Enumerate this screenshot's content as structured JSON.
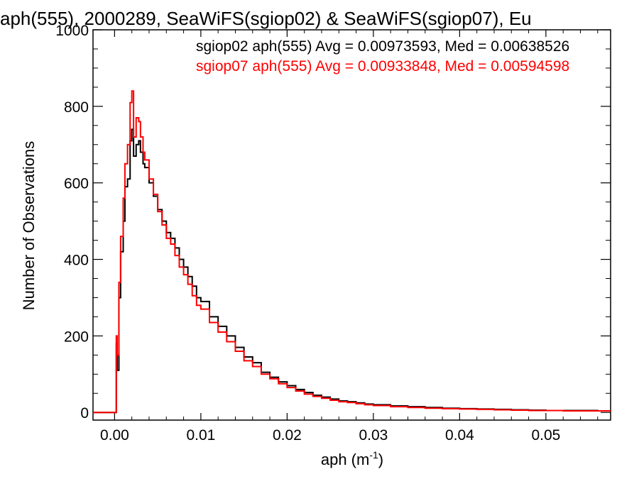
{
  "chart_data": {
    "type": "line",
    "title": "aph(555), 2000289, SeaWiFS(sgiop02) & SeaWiFS(sgiop07), Eu",
    "xlabel": "aph (m",
    "xlabel_sup": "-1",
    "xlabel_close": ")",
    "ylabel": "Number of Observations",
    "xlim": [
      -0.0025,
      0.0575
    ],
    "ylim": [
      -20,
      1000
    ],
    "x_ticks": [
      0.0,
      0.01,
      0.02,
      0.03,
      0.04,
      0.05
    ],
    "x_tick_labels": [
      "0.00",
      "0.01",
      "0.02",
      "0.03",
      "0.04",
      "0.05"
    ],
    "y_ticks": [
      0,
      200,
      400,
      600,
      800,
      1000
    ],
    "y_tick_labels": [
      "0",
      "200",
      "400",
      "600",
      "800",
      "1000"
    ],
    "grid": false,
    "legend": [
      {
        "text": "sgiop02 aph(555) Avg = 0.00973593, Med = 0.00638526",
        "color": "#000000"
      },
      {
        "text": "sgiop07 aph(555) Avg = 0.00933848, Med = 0.00594598",
        "color": "#ff0000"
      }
    ],
    "series": [
      {
        "color": "#000000",
        "x": [
          -0.0025,
          0.0,
          0.0002,
          0.0003,
          0.0005,
          0.0007,
          0.001,
          0.0012,
          0.0015,
          0.0018,
          0.002,
          0.0022,
          0.0025,
          0.0028,
          0.003,
          0.0033,
          0.0035,
          0.004,
          0.0045,
          0.005,
          0.0055,
          0.006,
          0.0065,
          0.007,
          0.0075,
          0.008,
          0.0085,
          0.009,
          0.0095,
          0.01,
          0.011,
          0.012,
          0.013,
          0.014,
          0.015,
          0.016,
          0.017,
          0.018,
          0.019,
          0.02,
          0.021,
          0.022,
          0.023,
          0.024,
          0.025,
          0.026,
          0.027,
          0.028,
          0.029,
          0.03,
          0.032,
          0.034,
          0.036,
          0.038,
          0.04,
          0.042,
          0.044,
          0.046,
          0.048,
          0.05,
          0.052,
          0.054,
          0.056,
          0.0575
        ],
        "y": [
          0,
          0,
          180,
          110,
          300,
          420,
          500,
          590,
          610,
          710,
          740,
          670,
          700,
          710,
          680,
          650,
          640,
          600,
          565,
          530,
          500,
          470,
          455,
          430,
          400,
          380,
          355,
          330,
          300,
          290,
          250,
          225,
          200,
          170,
          145,
          130,
          105,
          92,
          80,
          70,
          60,
          52,
          45,
          40,
          35,
          30,
          28,
          25,
          22,
          20,
          17,
          15,
          13,
          11,
          10,
          9,
          8,
          7,
          6,
          5,
          5,
          5,
          4,
          4
        ]
      },
      {
        "color": "#ff0000",
        "x": [
          -0.0025,
          0.0,
          0.0002,
          0.0003,
          0.0005,
          0.0007,
          0.001,
          0.0012,
          0.0015,
          0.0018,
          0.002,
          0.0022,
          0.0025,
          0.0028,
          0.003,
          0.0033,
          0.0035,
          0.004,
          0.0045,
          0.005,
          0.0055,
          0.006,
          0.0065,
          0.007,
          0.0075,
          0.008,
          0.0085,
          0.009,
          0.0095,
          0.01,
          0.011,
          0.012,
          0.013,
          0.014,
          0.015,
          0.016,
          0.017,
          0.018,
          0.019,
          0.02,
          0.021,
          0.022,
          0.023,
          0.024,
          0.025,
          0.026,
          0.027,
          0.028,
          0.029,
          0.03,
          0.032,
          0.034,
          0.036,
          0.038,
          0.04,
          0.042,
          0.044,
          0.046,
          0.048,
          0.05,
          0.052,
          0.054,
          0.056,
          0.0575
        ],
        "y": [
          0,
          0,
          200,
          150,
          340,
          460,
          560,
          650,
          700,
          810,
          840,
          720,
          770,
          760,
          720,
          680,
          660,
          610,
          570,
          525,
          490,
          455,
          440,
          410,
          380,
          360,
          335,
          305,
          280,
          270,
          235,
          210,
          185,
          160,
          135,
          120,
          100,
          88,
          75,
          65,
          56,
          48,
          42,
          37,
          32,
          28,
          26,
          23,
          20,
          18,
          15,
          13,
          11,
          10,
          9,
          8,
          7,
          6,
          5,
          5,
          4,
          4,
          4,
          4
        ]
      }
    ]
  }
}
